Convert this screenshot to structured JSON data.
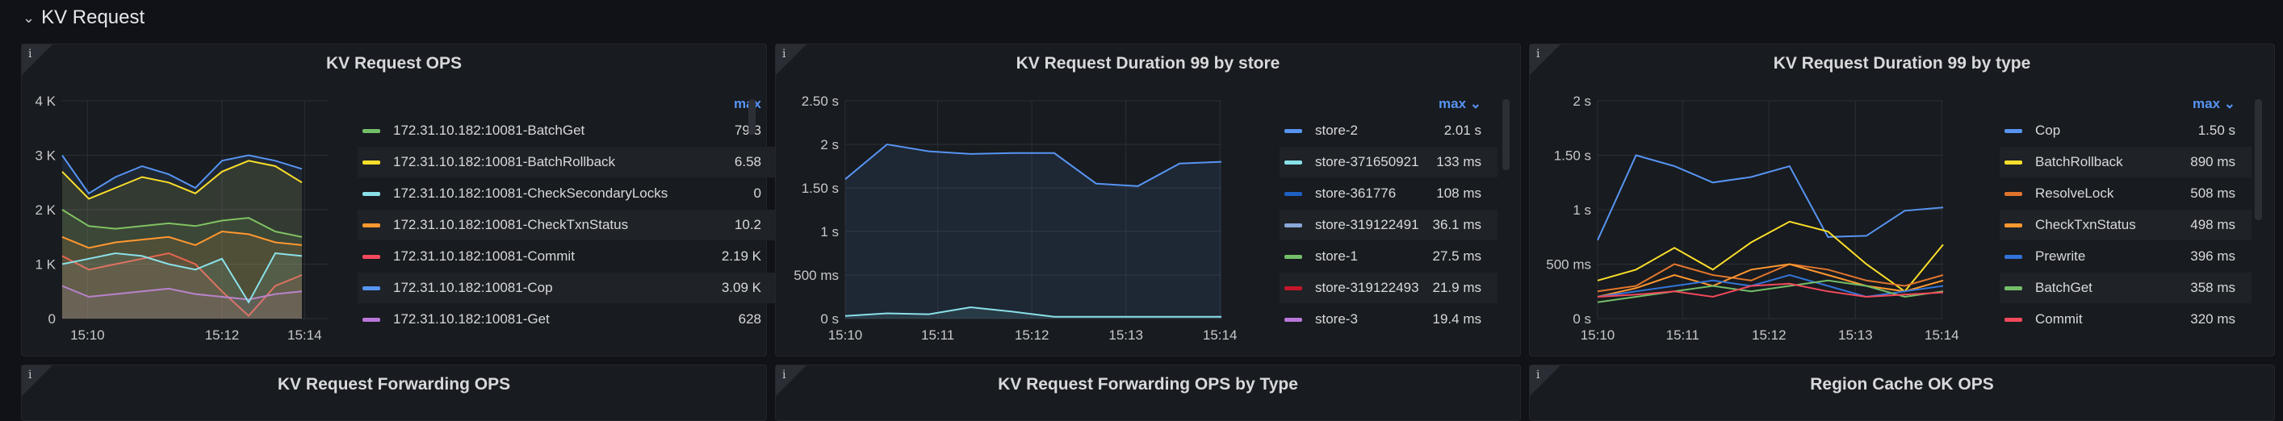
{
  "row": {
    "title": "KV Request",
    "chevron_icon": "chevron-down-icon"
  },
  "panels": [
    {
      "title": "KV Request OPS",
      "info": "i",
      "legend_header": "max",
      "legend": [
        {
          "name": "172.31.10.182:10081-BatchGet",
          "value": "79.3",
          "color": "#73bf69"
        },
        {
          "name": "172.31.10.182:10081-BatchRollback",
          "value": "6.58",
          "color": "#fade2a"
        },
        {
          "name": "172.31.10.182:10081-CheckSecondaryLocks",
          "value": "0",
          "color": "#8ae0e8"
        },
        {
          "name": "172.31.10.182:10081-CheckTxnStatus",
          "value": "10.2",
          "color": "#ff9830"
        },
        {
          "name": "172.31.10.182:10081-Commit",
          "value": "2.19 K",
          "color": "#f2495c"
        },
        {
          "name": "172.31.10.182:10081-Cop",
          "value": "3.09 K",
          "color": "#5794f2"
        },
        {
          "name": "172.31.10.182:10081-Get",
          "value": "628",
          "color": "#b877d9"
        }
      ]
    },
    {
      "title": "KV Request Duration 99 by store",
      "info": "i",
      "legend_header": "max",
      "legend": [
        {
          "name": "store-2",
          "value": "2.01 s",
          "color": "#5794f2"
        },
        {
          "name": "store-371650921",
          "value": "133 ms",
          "color": "#8ae0e8"
        },
        {
          "name": "store-361776",
          "value": "108 ms",
          "color": "#1f60c4"
        },
        {
          "name": "store-319122491",
          "value": "36.1 ms",
          "color": "#8aa8d8"
        },
        {
          "name": "store-1",
          "value": "27.5 ms",
          "color": "#73bf69"
        },
        {
          "name": "store-319122493",
          "value": "21.9 ms",
          "color": "#c4162a"
        },
        {
          "name": "store-3",
          "value": "19.4 ms",
          "color": "#b877d9"
        }
      ]
    },
    {
      "title": "KV Request Duration 99 by type",
      "info": "i",
      "legend_header": "max",
      "legend": [
        {
          "name": "Cop",
          "value": "1.50 s",
          "color": "#5794f2"
        },
        {
          "name": "BatchRollback",
          "value": "890 ms",
          "color": "#fade2a"
        },
        {
          "name": "ResolveLock",
          "value": "508 ms",
          "color": "#e0752d"
        },
        {
          "name": "CheckTxnStatus",
          "value": "498 ms",
          "color": "#ff9830"
        },
        {
          "name": "Prewrite",
          "value": "396 ms",
          "color": "#3274d9"
        },
        {
          "name": "BatchGet",
          "value": "358 ms",
          "color": "#73bf69"
        },
        {
          "name": "Commit",
          "value": "320 ms",
          "color": "#f2495c"
        }
      ]
    },
    {
      "title": "KV Request Forwarding OPS",
      "info": "i"
    },
    {
      "title": "KV Request Forwarding OPS by Type",
      "info": "i"
    },
    {
      "title": "Region Cache OK OPS",
      "info": "i"
    }
  ],
  "chart_data": [
    {
      "type": "area",
      "title": "KV Request OPS",
      "x": [
        "15:09:30",
        "15:10:00",
        "15:10:30",
        "15:11:00",
        "15:11:30",
        "15:12:00",
        "15:12:30",
        "15:13:00",
        "15:13:30",
        "15:14:00",
        "15:14:30"
      ],
      "xticks": [
        "15:10",
        "15:12",
        "15:14"
      ],
      "yticks": [
        "0",
        "1 K",
        "2 K",
        "3 K",
        "4 K"
      ],
      "ylim": [
        0,
        4000
      ],
      "series": [
        {
          "name": "172.31.10.182:10081-Cop",
          "color": "#5794f2",
          "values": [
            3000,
            2300,
            2600,
            2800,
            2650,
            2400,
            2900,
            3000,
            2900,
            2750,
            null
          ]
        },
        {
          "name": "172.31.10.182:10081-Commit",
          "color": "#f2495c",
          "values": [
            1150,
            900,
            1000,
            1100,
            1200,
            1000,
            500,
            50,
            600,
            800,
            null
          ]
        },
        {
          "name": "172.31.10.182:10081-BatchGet",
          "color": "#73bf69",
          "values": [
            2000,
            1700,
            1650,
            1700,
            1750,
            1700,
            1800,
            1850,
            1600,
            1500,
            null
          ]
        },
        {
          "name": "172.31.10.182:10081-BatchRollback",
          "color": "#fade2a",
          "values": [
            2700,
            2200,
            2400,
            2600,
            2500,
            2300,
            2700,
            2900,
            2800,
            2500,
            null
          ]
        },
        {
          "name": "172.31.10.182:10081-Get",
          "color": "#b877d9",
          "values": [
            600,
            400,
            450,
            500,
            550,
            450,
            400,
            350,
            450,
            500,
            null
          ]
        },
        {
          "name": "172.31.10.182:10081-CheckTxnStatus",
          "color": "#ff9830",
          "values": [
            1500,
            1300,
            1400,
            1450,
            1500,
            1350,
            1600,
            1550,
            1400,
            1350,
            null
          ]
        },
        {
          "name": "172.31.10.182:10081-CheckSecondaryLocks",
          "color": "#8ae0e8",
          "values": [
            1000,
            1100,
            1200,
            1150,
            1000,
            900,
            1100,
            300,
            1200,
            1150,
            null
          ]
        }
      ]
    },
    {
      "type": "area",
      "title": "KV Request Duration 99 by store",
      "x": [
        "15:10:00",
        "15:10:30",
        "15:11:00",
        "15:11:30",
        "15:12:00",
        "15:12:30",
        "15:13:00",
        "15:13:30",
        "15:14:00",
        "15:14:30"
      ],
      "xticks": [
        "15:10",
        "15:11",
        "15:12",
        "15:13",
        "15:14"
      ],
      "yticks": [
        "0 s",
        "500 ms",
        "1 s",
        "1.50 s",
        "2 s",
        "2.50 s"
      ],
      "ylim": [
        0,
        2.5
      ],
      "series": [
        {
          "name": "store-2",
          "color": "#5794f2",
          "values": [
            1.6,
            2.0,
            1.92,
            1.89,
            1.9,
            1.9,
            1.55,
            1.52,
            1.78,
            1.8
          ]
        },
        {
          "name": "store-371650921",
          "color": "#8ae0e8",
          "values": [
            0.03,
            0.06,
            0.05,
            0.13,
            0.08,
            0.02,
            0.02,
            0.02,
            0.02,
            0.02
          ]
        }
      ]
    },
    {
      "type": "line",
      "title": "KV Request Duration 99 by type",
      "x": [
        "15:10:00",
        "15:10:30",
        "15:11:00",
        "15:11:30",
        "15:12:00",
        "15:12:30",
        "15:13:00",
        "15:13:30",
        "15:14:00",
        "15:14:30"
      ],
      "xticks": [
        "15:10",
        "15:11",
        "15:12",
        "15:13",
        "15:14"
      ],
      "yticks": [
        "0 s",
        "500 ms",
        "1 s",
        "1.50 s",
        "2 s"
      ],
      "ylim": [
        0,
        2
      ],
      "series": [
        {
          "name": "Cop",
          "color": "#5794f2",
          "values": [
            0.72,
            1.5,
            1.4,
            1.25,
            1.3,
            1.4,
            0.75,
            0.76,
            0.99,
            1.02
          ]
        },
        {
          "name": "BatchRollback",
          "color": "#fade2a",
          "values": [
            0.35,
            0.45,
            0.65,
            0.45,
            0.7,
            0.89,
            0.8,
            0.5,
            0.25,
            0.68
          ]
        },
        {
          "name": "ResolveLock",
          "color": "#e0752d",
          "values": [
            0.25,
            0.3,
            0.5,
            0.4,
            0.35,
            0.5,
            0.45,
            0.35,
            0.3,
            0.4
          ]
        },
        {
          "name": "CheckTxnStatus",
          "color": "#ff9830",
          "values": [
            0.2,
            0.28,
            0.4,
            0.3,
            0.45,
            0.5,
            0.4,
            0.3,
            0.25,
            0.35
          ]
        },
        {
          "name": "Prewrite",
          "color": "#3274d9",
          "values": [
            0.2,
            0.25,
            0.3,
            0.35,
            0.3,
            0.4,
            0.3,
            0.2,
            0.25,
            0.3
          ]
        },
        {
          "name": "BatchGet",
          "color": "#73bf69",
          "values": [
            0.15,
            0.2,
            0.25,
            0.3,
            0.25,
            0.3,
            0.35,
            0.3,
            0.2,
            0.25
          ]
        },
        {
          "name": "Commit",
          "color": "#f2495c",
          "values": [
            0.2,
            0.22,
            0.25,
            0.2,
            0.3,
            0.32,
            0.25,
            0.2,
            0.22,
            0.24
          ]
        }
      ]
    }
  ]
}
